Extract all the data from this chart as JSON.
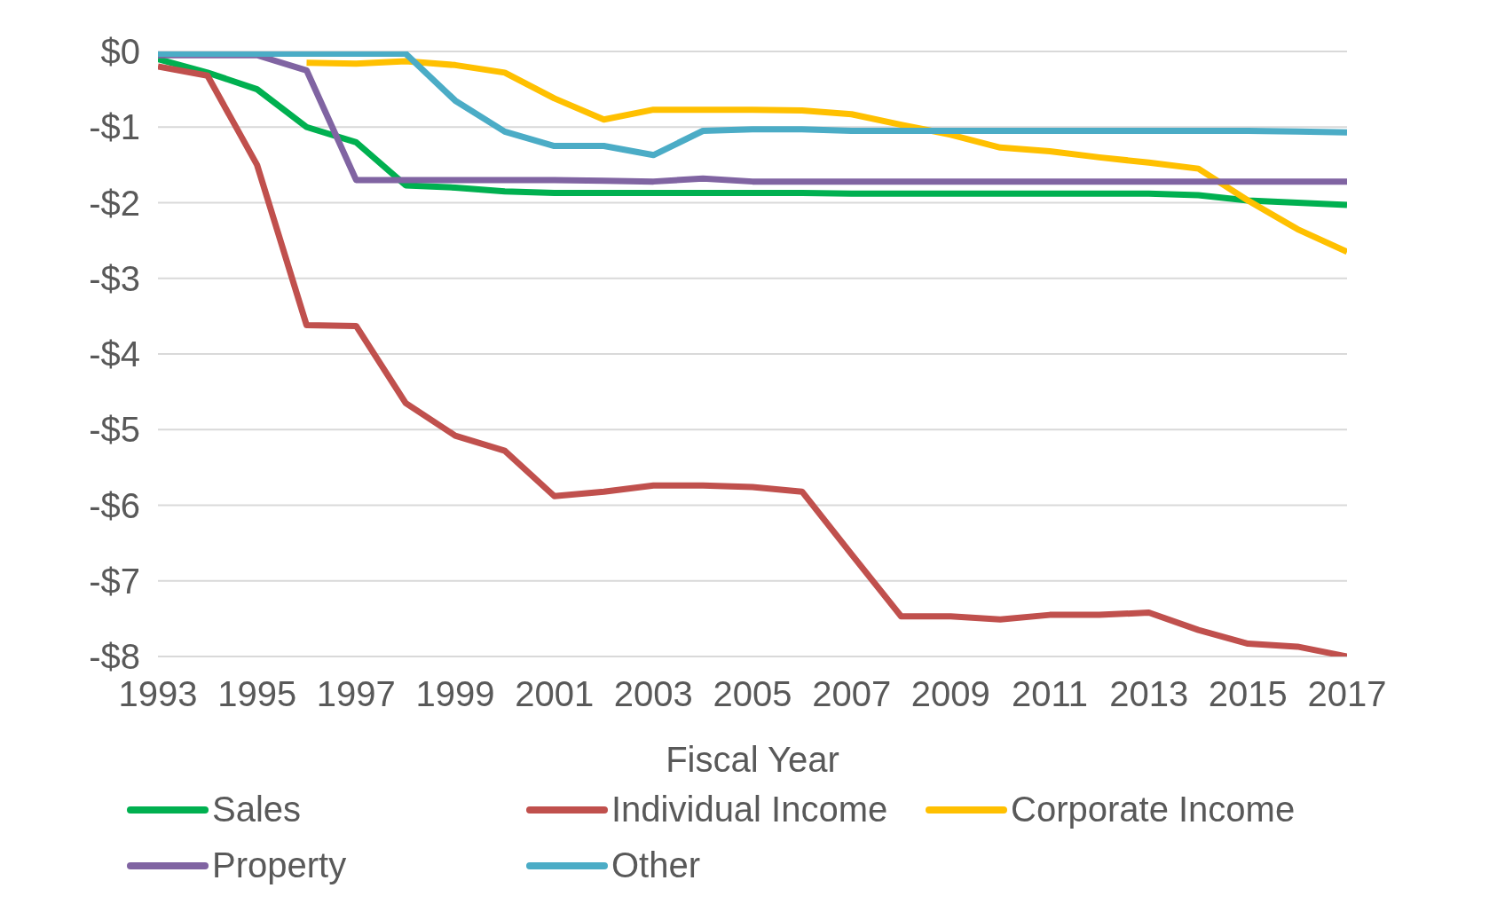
{
  "chart_data": {
    "type": "line",
    "xlabel": "Fiscal Year",
    "x": [
      1993,
      1994,
      1995,
      1996,
      1997,
      1998,
      1999,
      2000,
      2001,
      2002,
      2003,
      2004,
      2005,
      2006,
      2007,
      2008,
      2009,
      2010,
      2011,
      2012,
      2013,
      2014,
      2015,
      2016,
      2017
    ],
    "series": [
      {
        "name": "Sales",
        "color": "#00b050",
        "values": [
          -0.1,
          -0.28,
          -0.5,
          -1.0,
          -1.2,
          -1.77,
          -1.8,
          -1.85,
          -1.87,
          -1.87,
          -1.87,
          -1.87,
          -1.87,
          -1.87,
          -1.88,
          -1.88,
          -1.88,
          -1.88,
          -1.88,
          -1.88,
          -1.88,
          -1.9,
          -1.97,
          -2.0,
          -2.03
        ]
      },
      {
        "name": "Individual Income",
        "color": "#c0504d",
        "values": [
          -0.2,
          -0.32,
          -1.5,
          -3.62,
          -3.63,
          -4.65,
          -5.08,
          -5.28,
          -5.88,
          -5.82,
          -5.74,
          -5.74,
          -5.76,
          -5.82,
          -6.65,
          -7.47,
          -7.47,
          -7.51,
          -7.45,
          -7.45,
          -7.42,
          -7.65,
          -7.83,
          -7.87,
          -8.0
        ]
      },
      {
        "name": "Corporate Income",
        "color": "#ffc000",
        "values": [
          null,
          null,
          null,
          -0.15,
          -0.16,
          -0.13,
          -0.18,
          -0.28,
          -0.62,
          -0.9,
          -0.77,
          -0.77,
          -0.77,
          -0.78,
          -0.83,
          -0.97,
          -1.1,
          -1.27,
          -1.32,
          -1.4,
          -1.47,
          -1.55,
          -1.97,
          -2.35,
          -2.65
        ]
      },
      {
        "name": "Property",
        "color": "#8064a2",
        "values": [
          -0.05,
          -0.05,
          -0.05,
          -0.25,
          -1.7,
          -1.7,
          -1.7,
          -1.7,
          -1.7,
          -1.71,
          -1.72,
          -1.68,
          -1.72,
          -1.72,
          -1.72,
          -1.72,
          -1.72,
          -1.72,
          -1.72,
          -1.72,
          -1.72,
          -1.72,
          -1.72,
          -1.72,
          -1.72
        ]
      },
      {
        "name": "Other",
        "color": "#4bacc6",
        "values": [
          -0.03,
          -0.03,
          -0.03,
          -0.03,
          -0.03,
          -0.03,
          -0.65,
          -1.06,
          -1.25,
          -1.25,
          -1.37,
          -1.05,
          -1.03,
          -1.03,
          -1.05,
          -1.05,
          -1.05,
          -1.05,
          -1.05,
          -1.05,
          -1.05,
          -1.05,
          -1.05,
          -1.06,
          -1.07
        ]
      }
    ],
    "xlim": [
      1993,
      2017
    ],
    "xticks": [
      1993,
      1995,
      1997,
      1999,
      2001,
      2003,
      2005,
      2007,
      2009,
      2011,
      2013,
      2015,
      2017
    ],
    "ylim": [
      -8,
      0
    ],
    "yticks": [
      {
        "value": -8,
        "label": "-$8"
      },
      {
        "value": -7,
        "label": "-$7"
      },
      {
        "value": -6,
        "label": "-$6"
      },
      {
        "value": -5,
        "label": "-$5"
      },
      {
        "value": -4,
        "label": "-$4"
      },
      {
        "value": -3,
        "label": "-$3"
      },
      {
        "value": -2,
        "label": "-$2"
      },
      {
        "value": -1,
        "label": "-$1"
      },
      {
        "value": 0,
        "label": "$0"
      }
    ],
    "grid": "y",
    "legend": "bottom",
    "marker": "none",
    "line_style": "solid"
  }
}
